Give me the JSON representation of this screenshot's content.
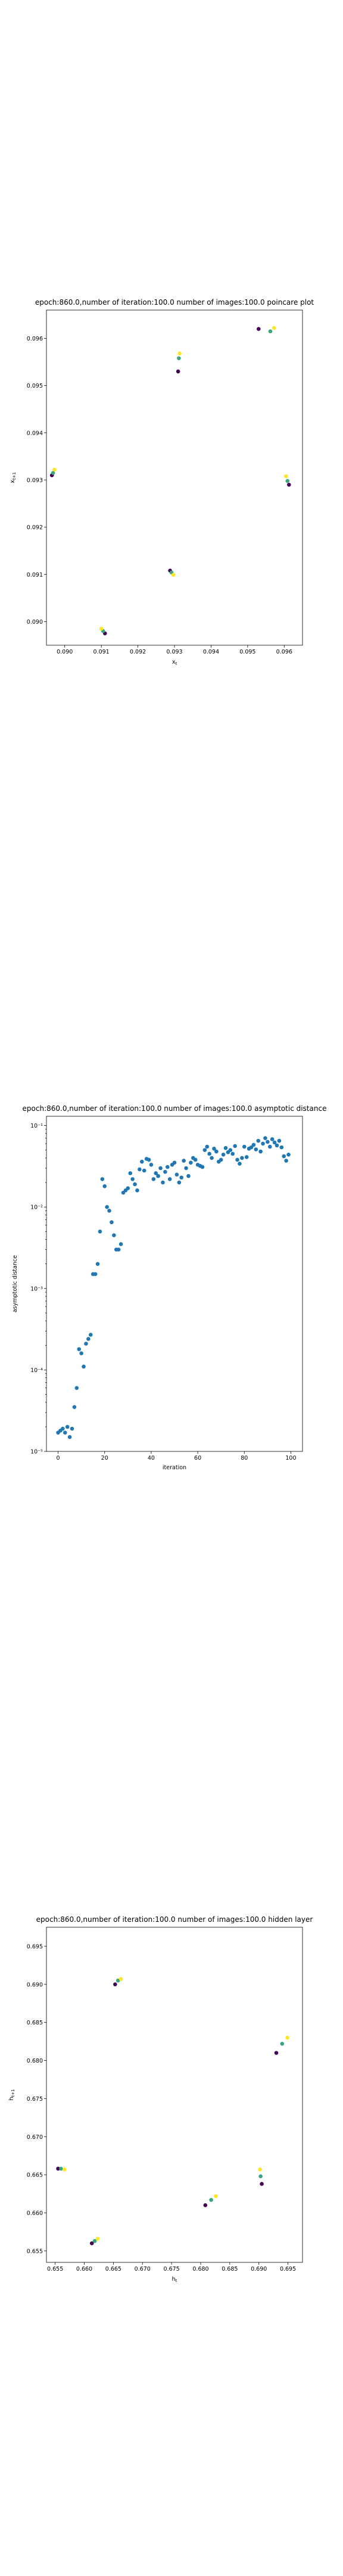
{
  "chart_data": [
    {
      "type": "scatter",
      "title": "epoch:860.0,number of iteration:100.0 number of images:100.0 poincare plot",
      "xlabel": "x_t",
      "ylabel": "x_{t+1}",
      "xlim": [
        0.0895,
        0.0965
      ],
      "ylim": [
        0.0895,
        0.0966
      ],
      "xticks": [
        0.09,
        0.091,
        0.092,
        0.093,
        0.094,
        0.095,
        0.096
      ],
      "yticks": [
        0.09,
        0.091,
        0.092,
        0.093,
        0.094,
        0.095,
        0.096
      ],
      "xticklabels": [
        "0.090",
        "0.091",
        "0.092",
        "0.093",
        "0.094",
        "0.095",
        "0.096"
      ],
      "yticklabels": [
        "0.090",
        "0.091",
        "0.092",
        "0.093",
        "0.094",
        "0.095",
        "0.096"
      ],
      "colormap": [
        "#440154",
        "#3b528b",
        "#21918c",
        "#5ec962",
        "#fde725"
      ],
      "points": [
        {
          "x": 0.08965,
          "y": 0.0931,
          "c": 0.0
        },
        {
          "x": 0.08968,
          "y": 0.09315,
          "c": 0.6
        },
        {
          "x": 0.08972,
          "y": 0.09322,
          "c": 1.0
        },
        {
          "x": 0.0911,
          "y": 0.08975,
          "c": 0.0
        },
        {
          "x": 0.09105,
          "y": 0.0898,
          "c": 0.6
        },
        {
          "x": 0.091,
          "y": 0.08985,
          "c": 1.0
        },
        {
          "x": 0.09288,
          "y": 0.09108,
          "c": 0.0
        },
        {
          "x": 0.09292,
          "y": 0.09104,
          "c": 0.6
        },
        {
          "x": 0.09297,
          "y": 0.09099,
          "c": 1.0
        },
        {
          "x": 0.0931,
          "y": 0.0953,
          "c": 0.0
        },
        {
          "x": 0.09312,
          "y": 0.09558,
          "c": 0.6
        },
        {
          "x": 0.09314,
          "y": 0.09568,
          "c": 1.0
        },
        {
          "x": 0.0953,
          "y": 0.0962,
          "c": 0.0
        },
        {
          "x": 0.09562,
          "y": 0.09615,
          "c": 0.6
        },
        {
          "x": 0.09572,
          "y": 0.09622,
          "c": 1.0
        },
        {
          "x": 0.09613,
          "y": 0.0929,
          "c": 0.0
        },
        {
          "x": 0.09609,
          "y": 0.09298,
          "c": 0.6
        },
        {
          "x": 0.09605,
          "y": 0.09308,
          "c": 1.0
        }
      ]
    },
    {
      "type": "scatter",
      "title": "epoch:860.0,number of iteration:100.0  number of images:100.0 asymptotic distance",
      "xlabel": "iteration",
      "ylabel": "asymptotic distance",
      "xlim": [
        -5,
        105
      ],
      "ylog": true,
      "ylim": [
        1e-05,
        0.13
      ],
      "xticks": [
        0,
        20,
        40,
        60,
        80,
        100
      ],
      "xticklabels": [
        "0",
        "20",
        "40",
        "60",
        "80",
        "100"
      ],
      "yticks": [
        1e-05,
        0.0001,
        0.001,
        0.01,
        0.1
      ],
      "yticklabels": [
        "10⁻⁵",
        "10⁻⁴",
        "10⁻³",
        "10⁻²",
        "10⁻¹"
      ],
      "color": "#1f77b4",
      "x": [
        0,
        1,
        2,
        3,
        4,
        5,
        6,
        7,
        8,
        9,
        10,
        11,
        12,
        13,
        14,
        15,
        16,
        17,
        18,
        19,
        20,
        21,
        22,
        23,
        24,
        25,
        26,
        27,
        28,
        29,
        30,
        31,
        32,
        33,
        34,
        35,
        36,
        37,
        38,
        39,
        40,
        41,
        42,
        43,
        44,
        45,
        46,
        47,
        48,
        49,
        50,
        51,
        52,
        53,
        54,
        55,
        56,
        57,
        58,
        59,
        60,
        61,
        62,
        63,
        64,
        65,
        66,
        67,
        68,
        69,
        70,
        71,
        72,
        73,
        74,
        75,
        76,
        77,
        78,
        79,
        80,
        81,
        82,
        83,
        84,
        85,
        86,
        87,
        88,
        89,
        90,
        91,
        92,
        93,
        94,
        95,
        96,
        97,
        98,
        99
      ],
      "y": [
        1.7e-05,
        1.8e-05,
        1.9e-05,
        1.7e-05,
        2e-05,
        1.5e-05,
        1.9e-05,
        3.5e-05,
        6e-05,
        0.00018,
        0.00016,
        0.00011,
        0.00021,
        0.00024,
        0.00027,
        0.0015,
        0.0015,
        0.002,
        0.005,
        0.022,
        0.018,
        0.01,
        0.009,
        0.0065,
        0.0045,
        0.003,
        0.003,
        0.0035,
        0.015,
        0.016,
        0.017,
        0.026,
        0.022,
        0.019,
        0.016,
        0.029,
        0.036,
        0.028,
        0.039,
        0.038,
        0.033,
        0.022,
        0.026,
        0.024,
        0.03,
        0.02,
        0.027,
        0.031,
        0.022,
        0.033,
        0.035,
        0.025,
        0.02,
        0.023,
        0.037,
        0.03,
        0.024,
        0.035,
        0.04,
        0.038,
        0.033,
        0.032,
        0.031,
        0.05,
        0.055,
        0.045,
        0.04,
        0.052,
        0.048,
        0.036,
        0.038,
        0.044,
        0.053,
        0.047,
        0.05,
        0.045,
        0.056,
        0.038,
        0.034,
        0.04,
        0.055,
        0.041,
        0.052,
        0.054,
        0.058,
        0.051,
        0.065,
        0.048,
        0.06,
        0.07,
        0.063,
        0.055,
        0.068,
        0.062,
        0.057,
        0.065,
        0.054,
        0.042,
        0.037,
        0.044
      ]
    },
    {
      "type": "scatter",
      "title": "epoch:860.0,number of iteration:100.0  number of images:100.0 hidden layer",
      "xlabel": "h_t",
      "ylabel": "h_{t+1}",
      "xlim": [
        0.6535,
        0.6975
      ],
      "ylim": [
        0.6535,
        0.6975
      ],
      "xticks": [
        0.655,
        0.66,
        0.665,
        0.67,
        0.675,
        0.68,
        0.685,
        0.69,
        0.695
      ],
      "yticks": [
        0.655,
        0.66,
        0.665,
        0.67,
        0.675,
        0.68,
        0.685,
        0.69,
        0.695
      ],
      "xticklabels": [
        "0.655",
        "0.660",
        "0.665",
        "0.670",
        "0.675",
        "0.680",
        "0.685",
        "0.690",
        "0.695"
      ],
      "yticklabels": [
        "0.655",
        "0.660",
        "0.665",
        "0.670",
        "0.675",
        "0.680",
        "0.685",
        "0.690",
        "0.695"
      ],
      "colormap": [
        "#440154",
        "#3b528b",
        "#21918c",
        "#5ec962",
        "#fde725"
      ],
      "points": [
        {
          "x": 0.6555,
          "y": 0.6658,
          "c": 0.0
        },
        {
          "x": 0.656,
          "y": 0.6658,
          "c": 0.6
        },
        {
          "x": 0.6566,
          "y": 0.6657,
          "c": 1.0
        },
        {
          "x": 0.6613,
          "y": 0.656,
          "c": 0.0
        },
        {
          "x": 0.6618,
          "y": 0.6563,
          "c": 0.6
        },
        {
          "x": 0.6623,
          "y": 0.6566,
          "c": 1.0
        },
        {
          "x": 0.6653,
          "y": 0.69,
          "c": 0.0
        },
        {
          "x": 0.6658,
          "y": 0.6905,
          "c": 0.6
        },
        {
          "x": 0.6663,
          "y": 0.6907,
          "c": 1.0
        },
        {
          "x": 0.6808,
          "y": 0.661,
          "c": 0.0
        },
        {
          "x": 0.6818,
          "y": 0.6617,
          "c": 0.6
        },
        {
          "x": 0.6826,
          "y": 0.6622,
          "c": 1.0
        },
        {
          "x": 0.6905,
          "y": 0.6638,
          "c": 0.0
        },
        {
          "x": 0.6903,
          "y": 0.6648,
          "c": 0.6
        },
        {
          "x": 0.6902,
          "y": 0.6657,
          "c": 1.0
        },
        {
          "x": 0.693,
          "y": 0.681,
          "c": 0.0
        },
        {
          "x": 0.694,
          "y": 0.6822,
          "c": 0.6
        },
        {
          "x": 0.6949,
          "y": 0.683,
          "c": 1.0
        }
      ]
    }
  ]
}
